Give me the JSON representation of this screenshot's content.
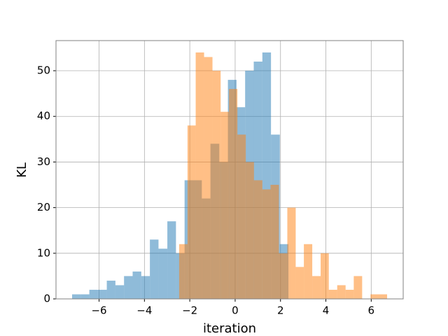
{
  "chart_data": {
    "type": "histogram",
    "xlabel": "iteration",
    "ylabel": "KL",
    "series": [
      {
        "color": "#1f77b4",
        "alpha": 0.5,
        "bins": [
          -7.19,
          -6.81,
          -6.43,
          -6.05,
          -5.66,
          -5.28,
          -4.9,
          -4.52,
          -4.14,
          -3.76,
          -3.38,
          -2.99,
          -2.61,
          -2.23,
          -1.85,
          -1.47,
          -1.09,
          -0.7,
          -0.32,
          0.06,
          0.44,
          0.82,
          1.2,
          1.58,
          1.97,
          2.35
        ],
        "values": [
          1,
          1,
          2,
          2,
          4,
          3,
          5,
          6,
          5,
          13,
          11,
          17,
          10,
          26,
          26,
          22,
          34,
          30,
          48,
          42,
          50,
          52,
          54,
          36,
          12
        ]
      },
      {
        "color": "#ff7f0e",
        "alpha": 0.5,
        "bins": [
          -2.47,
          -2.1,
          -1.74,
          -1.37,
          -1.0,
          -0.64,
          -0.27,
          0.1,
          0.47,
          0.83,
          1.2,
          1.56,
          1.93,
          2.3,
          2.67,
          3.03,
          3.4,
          3.77,
          4.13,
          4.5,
          4.87,
          5.23,
          5.6,
          5.97,
          6.33,
          6.7
        ],
        "values": [
          12,
          38,
          54,
          53,
          50,
          41,
          46,
          36,
          30,
          26,
          24,
          25,
          10,
          20,
          7,
          12,
          5,
          10,
          2,
          3,
          2,
          5,
          0,
          1,
          1
        ]
      }
    ],
    "xlim": [
      -7.9,
      7.41
    ],
    "ylim": [
      0,
      56.6
    ],
    "xticks": [
      {
        "value": -6,
        "label": "−6"
      },
      {
        "value": -4,
        "label": "−4"
      },
      {
        "value": -2,
        "label": "−2"
      },
      0,
      2,
      4,
      6
    ],
    "yticks": [
      0,
      10,
      20,
      30,
      40,
      50
    ],
    "grid": true
  }
}
